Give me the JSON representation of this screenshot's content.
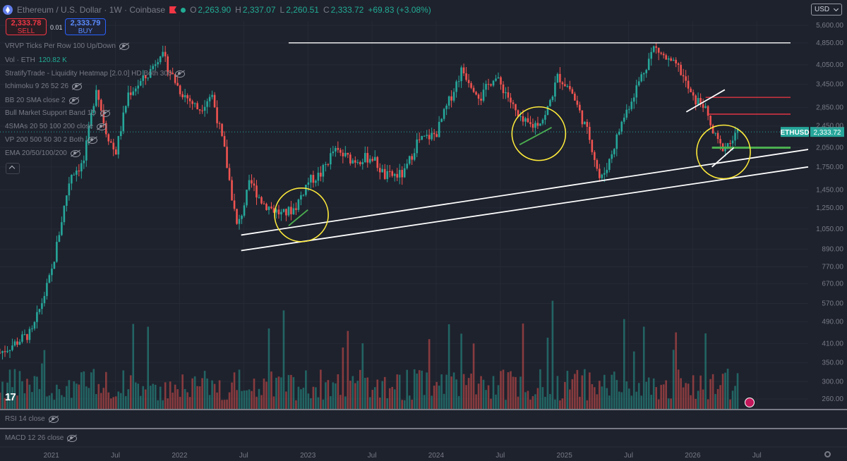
{
  "header": {
    "title": "Ethereum / U.S. Dollar · 1W · Coinbase",
    "open": "2,263.90",
    "high": "2,337.07",
    "low": "2,260.51",
    "close": "2,333.72",
    "change": "+69.83 (+3.08%)"
  },
  "trade": {
    "sell_price": "2,333.78",
    "sell_label": "SELL",
    "spread": "0.01",
    "buy_price": "2,333.79",
    "buy_label": "BUY"
  },
  "currency": "USD",
  "indicators": [
    {
      "name": "VRVP Ticks Per Row 100 Up/Down"
    },
    {
      "name": "Vol · ETH",
      "value": "120.82 K"
    },
    {
      "name": "StratifyTrade - Liquidity Heatmap [2.0.0] HD Both 300"
    },
    {
      "name": "Ichimoku 9 26 52 26"
    },
    {
      "name": "BB 20 SMA close 2"
    },
    {
      "name": "Bull Market Support Band 1D"
    },
    {
      "name": "4SMAs 20 50 100 200 close"
    },
    {
      "name": "VP 200 500 50 30 2 Both"
    },
    {
      "name": "EMA 20/50/100/200"
    }
  ],
  "panes": {
    "rsi": "RSI 14 close",
    "macd": "MACD 12 26 close"
  },
  "logo": "17",
  "chart_data": {
    "type": "candlestick",
    "y_scale": "log",
    "y_ticks": [
      5600,
      4850,
      4050,
      3450,
      2850,
      2450,
      2050,
      1750,
      1450,
      1250,
      1050,
      890,
      770,
      670,
      570,
      490,
      410,
      350,
      300,
      260
    ],
    "y_tick_labels": [
      "5,600.00",
      "4,850.00",
      "4,050.00",
      "3,450.00",
      "2,850.00",
      "2,450.00",
      "2,050.00",
      "1,750.00",
      "1,450.00",
      "1,250.00",
      "1,050.00",
      "890.00",
      "770.00",
      "670.00",
      "570.00",
      "490.00",
      "410.00",
      "350.00",
      "300.00",
      "260.00"
    ],
    "x_tick_labels": [
      {
        "label": "2021",
        "date": 2021.0
      },
      {
        "label": "Jul",
        "date": 2021.5
      },
      {
        "label": "2022",
        "date": 2022.0
      },
      {
        "label": "Jul",
        "date": 2022.5
      },
      {
        "label": "2023",
        "date": 2023.0
      },
      {
        "label": "Jul",
        "date": 2023.5
      },
      {
        "label": "2024",
        "date": 2024.0
      },
      {
        "label": "Jul",
        "date": 2024.5
      },
      {
        "label": "2025",
        "date": 2025.0
      },
      {
        "label": "Jul",
        "date": 2025.5
      },
      {
        "label": "2026",
        "date": 2026.0
      },
      {
        "label": "Jul",
        "date": 2026.5
      }
    ],
    "x_range": [
      2020.6,
      2026.9
    ],
    "price_path": [
      [
        2020.6,
        380
      ],
      [
        2020.85,
        450
      ],
      [
        2021.0,
        730
      ],
      [
        2021.15,
        1650
      ],
      [
        2021.25,
        1800
      ],
      [
        2021.35,
        3400
      ],
      [
        2021.42,
        2400
      ],
      [
        2021.5,
        1950
      ],
      [
        2021.6,
        3200
      ],
      [
        2021.75,
        3700
      ],
      [
        2021.85,
        4500
      ],
      [
        2022.0,
        3300
      ],
      [
        2022.15,
        2800
      ],
      [
        2022.25,
        3200
      ],
      [
        2022.35,
        2000
      ],
      [
        2022.45,
        1050
      ],
      [
        2022.55,
        1550
      ],
      [
        2022.65,
        1300
      ],
      [
        2022.8,
        1180
      ],
      [
        2022.9,
        1250
      ],
      [
        2023.0,
        1550
      ],
      [
        2023.1,
        1650
      ],
      [
        2023.2,
        2000
      ],
      [
        2023.35,
        1850
      ],
      [
        2023.5,
        1900
      ],
      [
        2023.6,
        1620
      ],
      [
        2023.75,
        1650
      ],
      [
        2023.85,
        2150
      ],
      [
        2024.0,
        2300
      ],
      [
        2024.1,
        3000
      ],
      [
        2024.2,
        3900
      ],
      [
        2024.35,
        3100
      ],
      [
        2024.45,
        3700
      ],
      [
        2024.55,
        3200
      ],
      [
        2024.65,
        2550
      ],
      [
        2024.75,
        2450
      ],
      [
        2024.85,
        2650
      ],
      [
        2024.95,
        3700
      ],
      [
        2025.05,
        3300
      ],
      [
        2025.2,
        2200
      ],
      [
        2025.28,
        1550
      ],
      [
        2025.35,
        1850
      ],
      [
        2025.45,
        2550
      ],
      [
        2025.6,
        3700
      ],
      [
        2025.7,
        4700
      ],
      [
        2025.8,
        4200
      ],
      [
        2025.9,
        3900
      ],
      [
        2026.0,
        3050
      ],
      [
        2026.08,
        2950
      ],
      [
        2026.15,
        2350
      ],
      [
        2026.22,
        2050
      ],
      [
        2026.3,
        2150
      ],
      [
        2026.36,
        2333.72
      ]
    ],
    "last_price": 2333.72,
    "last_price_label": "2,333.72",
    "symbol_label": "ETHUSD",
    "horizontal_levels": [
      {
        "price": 4850,
        "color": "#ffffff",
        "x_start": 2022.85
      },
      {
        "price": 3100,
        "color": "#f23645",
        "x_start": 2026.1
      },
      {
        "price": 2700,
        "color": "#f23645",
        "x_start": 2026.12
      },
      {
        "price": 2050,
        "color": "#4caf50",
        "x_start": 2026.15
      }
    ],
    "trendlines": [
      {
        "from": [
          2022.48,
          1000
        ],
        "to": [
          2026.9,
          2020
        ],
        "color": "#ffffff"
      },
      {
        "from": [
          2022.48,
          880
        ],
        "to": [
          2026.9,
          1750
        ],
        "color": "#ffffff"
      },
      {
        "from": [
          2025.95,
          2750
        ],
        "to": [
          2026.25,
          3300
        ],
        "color": "#ffffff"
      },
      {
        "from": [
          2026.15,
          1750
        ],
        "to": [
          2026.32,
          2050
        ],
        "color": "#ffffff"
      },
      {
        "from": [
          2022.85,
          1080
        ],
        "to": [
          2023.0,
          1230
        ],
        "color": "#4caf50"
      },
      {
        "from": [
          2024.65,
          2100
        ],
        "to": [
          2024.9,
          2420
        ],
        "color": "#4caf50"
      }
    ],
    "circles": [
      {
        "center": [
          2022.95,
          1180
        ]
      },
      {
        "center": [
          2024.8,
          2300
        ]
      },
      {
        "center": [
          2026.24,
          1980
        ]
      }
    ],
    "volume_note": "weekly volume histogram at bottom"
  }
}
